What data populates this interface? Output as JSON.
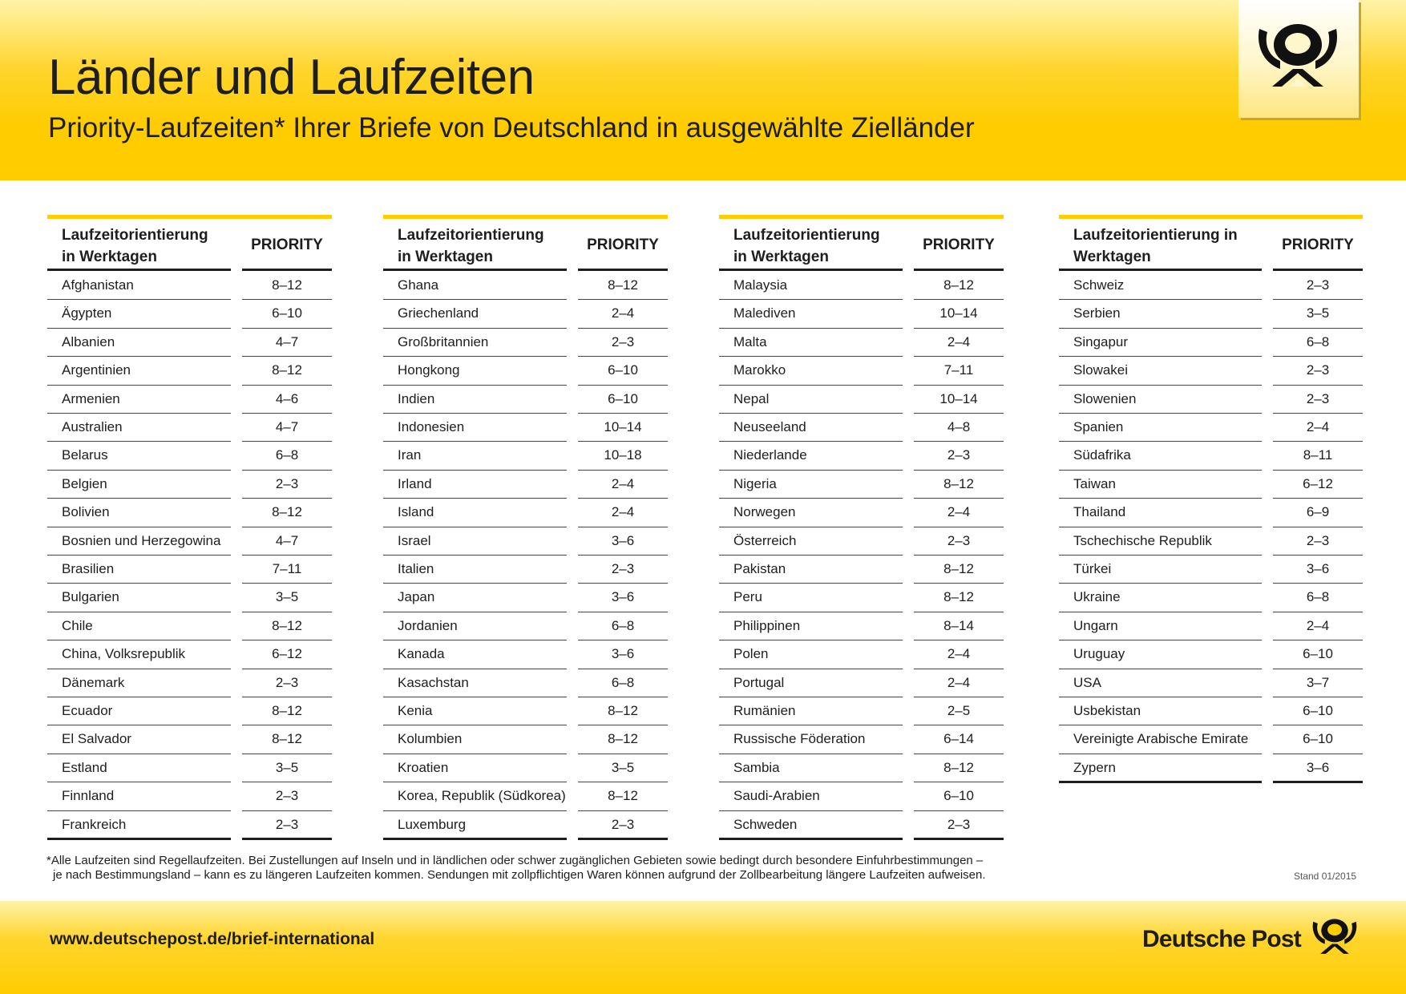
{
  "header": {
    "title": "Länder und Laufzeiten",
    "subtitle": "Priority-Laufzeiten* Ihrer Briefe von Deutschland in ausgewählte Zielländer"
  },
  "columns": [
    {
      "head_line1": "Laufzeitorientierung",
      "head_line2": "in Werktagen",
      "priority_label": "PRIORITY",
      "rows": [
        {
          "country": "Afghanistan",
          "priority": "8–12"
        },
        {
          "country": "Ägypten",
          "priority": "6–10"
        },
        {
          "country": "Albanien",
          "priority": "4–7"
        },
        {
          "country": "Argentinien",
          "priority": "8–12"
        },
        {
          "country": "Armenien",
          "priority": "4–6"
        },
        {
          "country": "Australien",
          "priority": "4–7"
        },
        {
          "country": "Belarus",
          "priority": "6–8"
        },
        {
          "country": "Belgien",
          "priority": "2–3"
        },
        {
          "country": "Bolivien",
          "priority": "8–12"
        },
        {
          "country": "Bosnien und Herzegowina",
          "priority": "4–7"
        },
        {
          "country": "Brasilien",
          "priority": "7–11"
        },
        {
          "country": "Bulgarien",
          "priority": "3–5"
        },
        {
          "country": "Chile",
          "priority": "8–12"
        },
        {
          "country": "China, Volksrepublik",
          "priority": "6–12"
        },
        {
          "country": "Dänemark",
          "priority": "2–3"
        },
        {
          "country": "Ecuador",
          "priority": "8–12"
        },
        {
          "country": "El Salvador",
          "priority": "8–12"
        },
        {
          "country": "Estland",
          "priority": "3–5"
        },
        {
          "country": "Finnland",
          "priority": "2–3"
        },
        {
          "country": "Frankreich",
          "priority": "2–3"
        }
      ]
    },
    {
      "head_line1": "Laufzeitorientierung",
      "head_line2": "in Werktagen",
      "priority_label": "PRIORITY",
      "rows": [
        {
          "country": "Ghana",
          "priority": "8–12"
        },
        {
          "country": "Griechenland",
          "priority": "2–4"
        },
        {
          "country": "Großbritannien",
          "priority": "2–3"
        },
        {
          "country": "Hongkong",
          "priority": "6–10"
        },
        {
          "country": "Indien",
          "priority": "6–10"
        },
        {
          "country": "Indonesien",
          "priority": "10–14"
        },
        {
          "country": "Iran",
          "priority": "10–18"
        },
        {
          "country": "Irland",
          "priority": "2–4"
        },
        {
          "country": "Island",
          "priority": "2–4"
        },
        {
          "country": "Israel",
          "priority": "3–6"
        },
        {
          "country": "Italien",
          "priority": "2–3"
        },
        {
          "country": "Japan",
          "priority": "3–6"
        },
        {
          "country": "Jordanien",
          "priority": "6–8"
        },
        {
          "country": "Kanada",
          "priority": "3–6"
        },
        {
          "country": "Kasachstan",
          "priority": "6–8"
        },
        {
          "country": "Kenia",
          "priority": "8–12"
        },
        {
          "country": "Kolumbien",
          "priority": "8–12"
        },
        {
          "country": "Kroatien",
          "priority": "3–5"
        },
        {
          "country": "Korea, Republik (Südkorea)",
          "priority": "8–12"
        },
        {
          "country": "Luxemburg",
          "priority": "2–3"
        }
      ]
    },
    {
      "head_line1": "Laufzeitorientierung",
      "head_line2": "in Werktagen",
      "priority_label": "PRIORITY",
      "rows": [
        {
          "country": "Malaysia",
          "priority": "8–12"
        },
        {
          "country": "Malediven",
          "priority": "10–14"
        },
        {
          "country": "Malta",
          "priority": "2–4"
        },
        {
          "country": "Marokko",
          "priority": "7–11"
        },
        {
          "country": "Nepal",
          "priority": "10–14"
        },
        {
          "country": "Neuseeland",
          "priority": "4–8"
        },
        {
          "country": "Niederlande",
          "priority": "2–3"
        },
        {
          "country": "Nigeria",
          "priority": "8–12"
        },
        {
          "country": "Norwegen",
          "priority": "2–4"
        },
        {
          "country": "Österreich",
          "priority": "2–3"
        },
        {
          "country": "Pakistan",
          "priority": "8–12"
        },
        {
          "country": "Peru",
          "priority": "8–12"
        },
        {
          "country": "Philippinen",
          "priority": "8–14"
        },
        {
          "country": "Polen",
          "priority": "2–4"
        },
        {
          "country": "Portugal",
          "priority": "2–4"
        },
        {
          "country": "Rumänien",
          "priority": "2–5"
        },
        {
          "country": "Russische Föderation",
          "priority": "6–14"
        },
        {
          "country": "Sambia",
          "priority": "8–12"
        },
        {
          "country": "Saudi-Arabien",
          "priority": "6–10"
        },
        {
          "country": "Schweden",
          "priority": "2–3"
        }
      ]
    },
    {
      "head_line1": "Laufzeitorientierung in",
      "head_line2": "Werktagen",
      "priority_label": "PRIORITY",
      "rows": [
        {
          "country": "Schweiz",
          "priority": "2–3"
        },
        {
          "country": "Serbien",
          "priority": "3–5"
        },
        {
          "country": "Singapur",
          "priority": "6–8"
        },
        {
          "country": "Slowakei",
          "priority": "2–3"
        },
        {
          "country": "Slowenien",
          "priority": "2–3"
        },
        {
          "country": "Spanien",
          "priority": "2–4"
        },
        {
          "country": "Südafrika",
          "priority": "8–11"
        },
        {
          "country": "Taiwan",
          "priority": "6–12"
        },
        {
          "country": "Thailand",
          "priority": "6–9"
        },
        {
          "country": "Tschechische Republik",
          "priority": "2–3"
        },
        {
          "country": "Türkei",
          "priority": "3–6"
        },
        {
          "country": "Ukraine",
          "priority": "6–8"
        },
        {
          "country": "Ungarn",
          "priority": "2–4"
        },
        {
          "country": "Uruguay",
          "priority": "6–10"
        },
        {
          "country": "USA",
          "priority": "3–7"
        },
        {
          "country": "Usbekistan",
          "priority": "6–10"
        },
        {
          "country": "Vereinigte Arabische Emirate",
          "priority": "6–10"
        },
        {
          "country": "Zypern",
          "priority": "3–6"
        }
      ]
    }
  ],
  "footnote": {
    "line1": "*Alle Laufzeiten sind Regellaufzeiten. Bei Zustellungen auf Inseln und in ländlichen oder schwer zugänglichen Gebieten sowie bedingt durch besondere Einfuhrbestimmungen –",
    "line2": "je nach Bestimmungsland – kann es zu längeren Laufzeiten kommen. Sendungen mit zollpflichtigen Waren können aufgrund der Zollbearbeitung längere Laufzeiten aufweisen."
  },
  "stand": "Stand 01/2015",
  "footer": {
    "url": "www.deutschepost.de/brief-international",
    "brand": "Deutsche Post"
  },
  "colors": {
    "brand_yellow": "#ffcc00",
    "text": "#1e1e1e"
  },
  "icons": {
    "header_logo": "posthorn-icon",
    "footer_logo": "posthorn-icon"
  }
}
